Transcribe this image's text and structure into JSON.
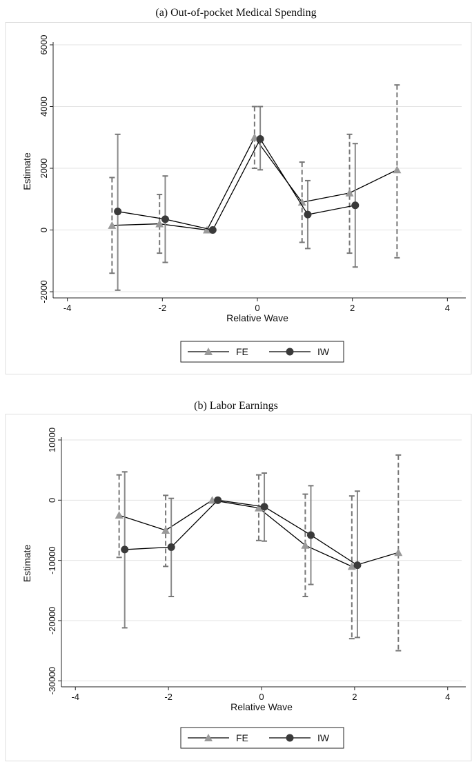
{
  "chart_data": [
    {
      "type": "scatter",
      "title": "(a) Out-of-pocket Medical Spending",
      "xlabel": "Relative Wave",
      "ylabel": "Estimate",
      "xlim": [
        -4.3,
        4.3
      ],
      "ylim": [
        -2200,
        6000
      ],
      "xticks": [
        -4,
        -2,
        0,
        2,
        4
      ],
      "xtick_labels": [
        "-4",
        "-2",
        "0",
        "2",
        "4"
      ],
      "yticks": [
        -2000,
        0,
        2000,
        4000,
        6000
      ],
      "ytick_labels": [
        "-2000",
        "0",
        "2000",
        "4000",
        "6000"
      ],
      "grid": true,
      "legend_position": "bottom",
      "series": [
        {
          "name": "FE",
          "color": "#9a9a9a",
          "marker": "triangle",
          "x": [
            -3,
            -2,
            -1,
            0,
            1,
            2,
            3
          ],
          "y": [
            150,
            200,
            0,
            3000,
            900,
            1200,
            1950
          ],
          "ci_low": [
            -1400,
            -750,
            0,
            2000,
            -400,
            -750,
            -900
          ],
          "ci_high": [
            1700,
            1150,
            0,
            4000,
            2200,
            3100,
            4700
          ]
        },
        {
          "name": "IW",
          "color": "#3a3a3a",
          "marker": "circle",
          "x": [
            -3,
            -2,
            -1,
            0,
            1,
            2
          ],
          "y": [
            600,
            350,
            0,
            2950,
            500,
            800
          ],
          "ci_low": [
            -1950,
            -1050,
            0,
            1950,
            -600,
            -1200
          ],
          "ci_high": [
            3100,
            1750,
            0,
            4000,
            1600,
            2800
          ]
        }
      ]
    },
    {
      "type": "scatter",
      "title": "(b) Labor Earnings",
      "xlabel": "Relative Wave",
      "ylabel": "Estimate",
      "xlim": [
        -4.3,
        4.3
      ],
      "ylim": [
        -31000,
        10000
      ],
      "xticks": [
        -4,
        -2,
        0,
        2,
        4
      ],
      "xtick_labels": [
        "-4",
        "-2",
        "0",
        "2",
        "4"
      ],
      "yticks": [
        -30000,
        -20000,
        -10000,
        0,
        10000
      ],
      "ytick_labels": [
        "-30000",
        "-20000",
        "-10000",
        "0",
        "10000"
      ],
      "grid": true,
      "legend_position": "bottom",
      "series": [
        {
          "name": "FE",
          "color": "#9a9a9a",
          "marker": "triangle",
          "x": [
            -3,
            -2,
            -1,
            0,
            1,
            2,
            3
          ],
          "y": [
            -2500,
            -5000,
            0,
            -1300,
            -7500,
            -11000,
            -8700
          ],
          "ci_low": [
            -9500,
            -11000,
            0,
            -6700,
            -16000,
            -23000,
            -25000
          ],
          "ci_high": [
            4200,
            800,
            0,
            4200,
            1000,
            700,
            7500
          ]
        },
        {
          "name": "IW",
          "color": "#3a3a3a",
          "marker": "circle",
          "x": [
            -3,
            -2,
            -1,
            0,
            1,
            2
          ],
          "y": [
            -8200,
            -7800,
            0,
            -1100,
            -5800,
            -10800
          ],
          "ci_low": [
            -21200,
            -16000,
            0,
            -6800,
            -14000,
            -22800
          ],
          "ci_high": [
            4700,
            300,
            0,
            4500,
            2400,
            1500
          ]
        }
      ]
    }
  ]
}
